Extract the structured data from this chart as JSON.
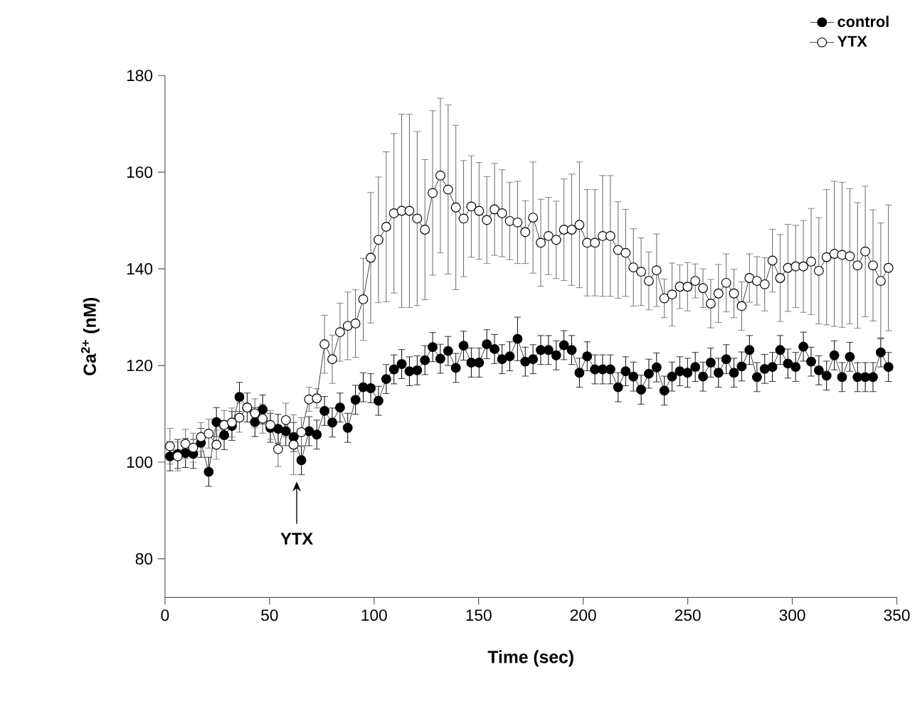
{
  "chart_data": {
    "type": "line",
    "xlabel": "Time (sec)",
    "ylabel": "Ca$^{2+}$ (nM)",
    "xlim": [
      0,
      350
    ],
    "ylim": [
      72,
      180
    ],
    "xticks": [
      0,
      50,
      100,
      150,
      200,
      250,
      300,
      350
    ],
    "yticks": [
      80,
      100,
      120,
      140,
      160,
      180
    ],
    "marker": "circle",
    "legend": "top right",
    "x": [
      2.4,
      6.1,
      9.8,
      13.5,
      17.2,
      20.9,
      24.6,
      28.3,
      32.0,
      35.6,
      39.3,
      43.0,
      46.7,
      50.4,
      54.1,
      57.8,
      61.5,
      65.2,
      68.9,
      72.6,
      76.3,
      80.0,
      83.7,
      87.4,
      91.1,
      94.8,
      98.4,
      102.1,
      105.8,
      109.5,
      113.2,
      116.9,
      120.6,
      124.3,
      128.0,
      131.7,
      135.4,
      139.1,
      142.8,
      146.5,
      150.2,
      153.9,
      157.6,
      161.2,
      164.9,
      168.6,
      172.3,
      176.0,
      179.7,
      183.4,
      187.1,
      190.8,
      194.5,
      198.2,
      201.9,
      205.6,
      209.3,
      213.0,
      216.7,
      220.3,
      224.0,
      227.7,
      231.4,
      235.1,
      238.8,
      242.5,
      246.2,
      249.9,
      253.6,
      257.3,
      261.0,
      264.7,
      268.4,
      272.1,
      275.8,
      279.5,
      283.1,
      286.8,
      290.5,
      294.2,
      297.9,
      301.6,
      305.3,
      309.0,
      312.7,
      316.4,
      320.1,
      323.8,
      327.5,
      331.2,
      334.9,
      338.6,
      342.3,
      346.0
    ],
    "series": [
      {
        "name": "control",
        "color": "#000000",
        "values": [
          101.2,
          101.7,
          101.9,
          101.7,
          104.0,
          98.0,
          108.3,
          105.6,
          107.5,
          113.5,
          111.3,
          108.3,
          110.9,
          107.1,
          106.9,
          106.4,
          105.2,
          100.4,
          106.4,
          105.7,
          110.6,
          108.2,
          111.3,
          107.1,
          112.9,
          115.5,
          115.3,
          112.7,
          117.2,
          119.2,
          120.3,
          118.8,
          119.0,
          121.1,
          123.8,
          121.4,
          123.0,
          119.5,
          124.1,
          120.6,
          120.6,
          124.4,
          123.4,
          121.3,
          121.9,
          125.5,
          120.8,
          121.3,
          123.2,
          123.2,
          122.1,
          124.2,
          123.2,
          118.5,
          121.9,
          119.2,
          119.2,
          119.2,
          115.5,
          118.8,
          117.7,
          115.0,
          118.3,
          119.6,
          114.8,
          117.7,
          118.8,
          118.5,
          119.7,
          117.7,
          120.6,
          118.5,
          121.3,
          118.5,
          119.8,
          123.2,
          117.6,
          119.3,
          119.7,
          123.2,
          120.4,
          119.7,
          123.9,
          120.8,
          119.0,
          117.9,
          122.1,
          117.6,
          121.8,
          117.6,
          117.6,
          117.6,
          122.7,
          119.7
        ],
        "errors": [
          3,
          3,
          3,
          3,
          3,
          3,
          3,
          3,
          3,
          3,
          3,
          3,
          3,
          3,
          3,
          3,
          3,
          3,
          3,
          3,
          3,
          3,
          3,
          3,
          3,
          3,
          3,
          3,
          3,
          3,
          3,
          3,
          3,
          3,
          3,
          3,
          3,
          3,
          3,
          3,
          3,
          3,
          3,
          3,
          3,
          4.5,
          3,
          3,
          3,
          3,
          3,
          3,
          3,
          3,
          3,
          3,
          3,
          3,
          3,
          3,
          3,
          3,
          3,
          3,
          3,
          3,
          3,
          3,
          3,
          3,
          3,
          3,
          3,
          3,
          3,
          3,
          3,
          3,
          3,
          3,
          3,
          3,
          3,
          3,
          3,
          3,
          3,
          3,
          3,
          3,
          3,
          3,
          3,
          3
        ]
      },
      {
        "name": "YTX",
        "color": "#ffffff",
        "values": [
          103.3,
          101.2,
          103.8,
          103.0,
          105.2,
          105.9,
          103.6,
          107.7,
          108.2,
          109.2,
          111.3,
          110.1,
          109.0,
          107.7,
          102.7,
          108.7,
          103.6,
          106.2,
          113.0,
          113.2,
          124.4,
          121.3,
          126.9,
          128.2,
          128.7,
          133.7,
          142.3,
          146.0,
          148.7,
          151.5,
          152.0,
          152.0,
          150.4,
          148.1,
          155.7,
          159.3,
          156.4,
          152.7,
          150.4,
          152.9,
          152.0,
          150.1,
          152.3,
          151.5,
          149.9,
          149.6,
          147.6,
          150.6,
          145.4,
          146.8,
          146.0,
          148.1,
          148.1,
          149.1,
          145.4,
          145.4,
          146.8,
          146.8,
          143.9,
          143.3,
          140.3,
          139.4,
          137.5,
          139.7,
          133.9,
          134.7,
          136.3,
          136.3,
          137.5,
          136.0,
          132.8,
          134.9,
          137.1,
          134.9,
          132.3,
          138.1,
          137.5,
          136.8,
          141.7,
          138.1,
          140.2,
          140.5,
          140.5,
          141.5,
          139.6,
          142.4,
          143.1,
          142.9,
          142.6,
          140.7,
          143.6,
          140.7,
          137.5,
          140.2
        ],
        "errors": [
          3.7,
          3,
          3,
          3,
          3,
          3,
          3,
          3,
          3,
          3,
          null,
          3,
          3,
          3,
          3.6,
          3.5,
          6.2,
          3,
          2.5,
          2,
          6,
          5,
          6,
          7,
          7,
          8.5,
          13.5,
          13,
          15.5,
          16.5,
          20,
          20,
          18,
          14.5,
          17,
          16,
          17.5,
          17,
          12,
          10.5,
          10,
          9,
          9.5,
          9,
          8,
          8.5,
          6.5,
          11.5,
          9,
          8,
          8,
          10.5,
          11.5,
          13,
          11,
          11,
          12.5,
          12.5,
          10,
          9,
          8,
          7,
          6,
          7.5,
          4,
          6.5,
          4.5,
          5,
          3.5,
          4,
          5,
          6,
          6,
          5,
          5,
          5,
          5,
          5.5,
          6.5,
          9,
          9,
          8.5,
          9.5,
          11,
          11,
          14,
          15,
          15,
          14,
          13,
          13.5,
          11.5,
          12,
          13
        ]
      }
    ],
    "annotations": [
      {
        "text": "YTX",
        "x": 63,
        "y": 96
      }
    ]
  }
}
